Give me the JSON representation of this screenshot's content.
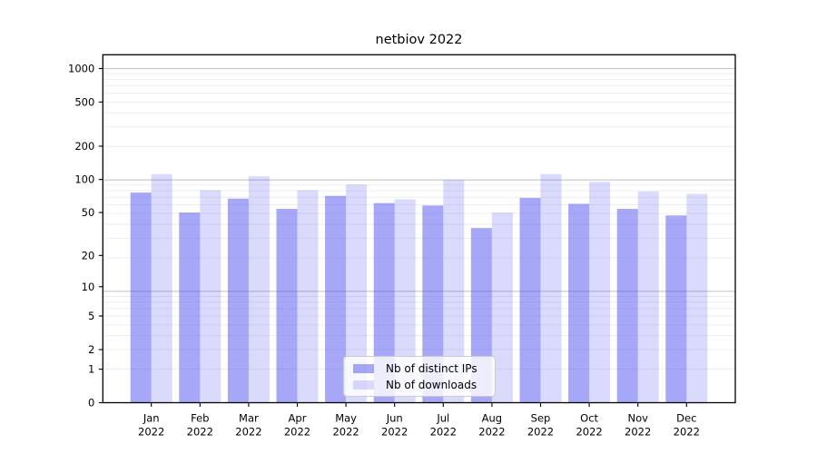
{
  "chart_data": {
    "type": "bar",
    "title": "netbiov 2022",
    "categories": [
      "Jan",
      "Feb",
      "Mar",
      "Apr",
      "May",
      "Jun",
      "Jul",
      "Aug",
      "Sep",
      "Oct",
      "Nov",
      "Dec"
    ],
    "year": "2022",
    "series": [
      {
        "name": "Nb of distinct IPs",
        "base_color": "#5050f0",
        "alpha": 0.5,
        "values": [
          76,
          50,
          67,
          54,
          71,
          61,
          58,
          36,
          68,
          60,
          54,
          47
        ]
      },
      {
        "name": "Nb of downloads",
        "base_color": "#5050f0",
        "alpha": 0.21,
        "values": [
          112,
          80,
          107,
          80,
          90,
          66,
          99,
          50,
          112,
          95,
          78,
          74
        ]
      }
    ],
    "yscale": "log10(value+1)",
    "yticks": [
      0,
      1,
      2,
      5,
      10,
      20,
      50,
      100,
      200,
      500,
      1000
    ],
    "ylim": [
      0,
      1330
    ],
    "grid": true,
    "legend_position": "lower center"
  },
  "colors": {
    "bar_base": "#5050f0",
    "bar_dark_blended": "#a8a8f8",
    "bar_light_blended": "#d9d9f8",
    "grid_major": "#c6c6c6",
    "grid_minor": "#ebebeb",
    "axis": "#000000",
    "background": "#ffffff"
  }
}
